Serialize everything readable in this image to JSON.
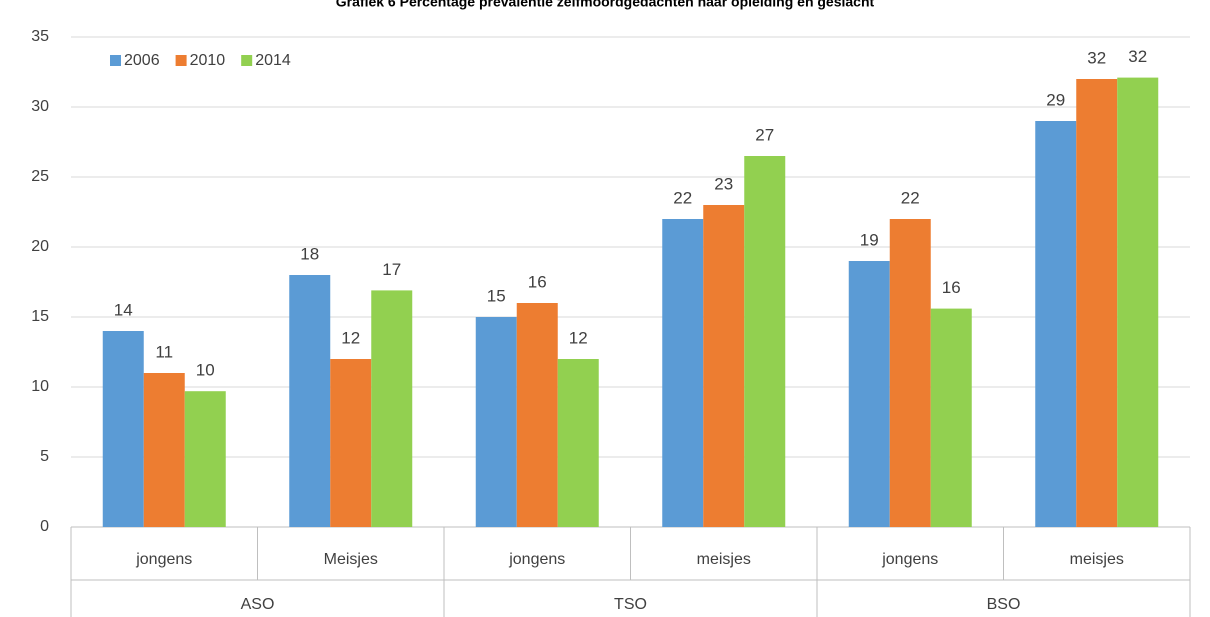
{
  "chart_data": {
    "type": "bar",
    "title": "Grafiek 6 Percentage prevalentie zelfmoordgedachten naar opleiding en geslacht",
    "categories": [
      "jongens",
      "Meisjes",
      "jongens",
      "meisjes",
      "jongens",
      "meisjes"
    ],
    "groups": [
      "ASO",
      "TSO",
      "BSO"
    ],
    "series": [
      {
        "name": "2006",
        "color": "#5b9bd5",
        "values": [
          14,
          18,
          15,
          22,
          19,
          29
        ],
        "value_labels": [
          "14",
          "18",
          "15",
          "22",
          "19",
          "29"
        ]
      },
      {
        "name": "2010",
        "color": "#ed7d31",
        "values": [
          11,
          12,
          16,
          23,
          22,
          32
        ],
        "value_labels": [
          "11",
          "12",
          "16",
          "23",
          "22",
          "32"
        ]
      },
      {
        "name": "2014",
        "color": "#92d050",
        "values": [
          9.7,
          16.9,
          12,
          26.5,
          15.6,
          32.1
        ],
        "value_labels": [
          "10",
          "17",
          "12",
          "27",
          "16",
          "32"
        ]
      }
    ],
    "ylim": [
      0,
      35
    ],
    "yticks": [
      0,
      5,
      10,
      15,
      20,
      25,
      30,
      35
    ],
    "grid": true,
    "legend": "top-left"
  }
}
